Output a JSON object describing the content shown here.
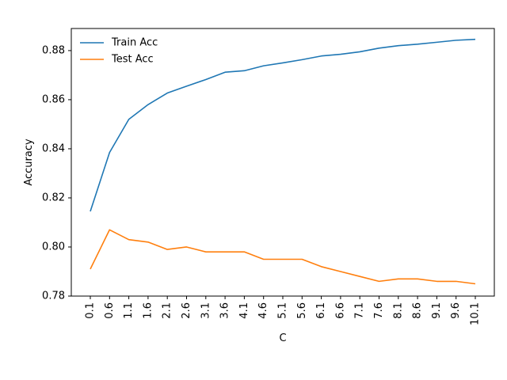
{
  "chart_data": {
    "type": "line",
    "title": "",
    "xlabel": "C",
    "ylabel": "Accuracy",
    "categories": [
      "0.1",
      "0.6",
      "1.1",
      "1.6",
      "2.1",
      "2.6",
      "3.1",
      "3.6",
      "4.1",
      "4.6",
      "5.1",
      "5.6",
      "6.1",
      "6.6",
      "7.1",
      "7.6",
      "8.1",
      "8.6",
      "9.1",
      "9.6",
      "10.1"
    ],
    "ylim": [
      0.78,
      0.889
    ],
    "yticks": [
      "0.78",
      "0.80",
      "0.82",
      "0.84",
      "0.86",
      "0.88"
    ],
    "grid": false,
    "legend_position": "top-left",
    "series": [
      {
        "name": "Train Acc",
        "color": "#1f77b4",
        "values": [
          0.8145,
          0.8385,
          0.852,
          0.858,
          0.8627,
          0.8655,
          0.8682,
          0.8712,
          0.8718,
          0.8738,
          0.875,
          0.8763,
          0.8778,
          0.8785,
          0.8795,
          0.881,
          0.882,
          0.8826,
          0.8834,
          0.8842,
          0.8846
        ]
      },
      {
        "name": "Test Acc",
        "color": "#ff7f0e",
        "values": [
          0.791,
          0.807,
          0.803,
          0.802,
          0.799,
          0.8,
          0.798,
          0.798,
          0.798,
          0.795,
          0.795,
          0.795,
          0.792,
          0.79,
          0.788,
          0.786,
          0.787,
          0.787,
          0.786,
          0.786,
          0.785
        ]
      }
    ]
  }
}
